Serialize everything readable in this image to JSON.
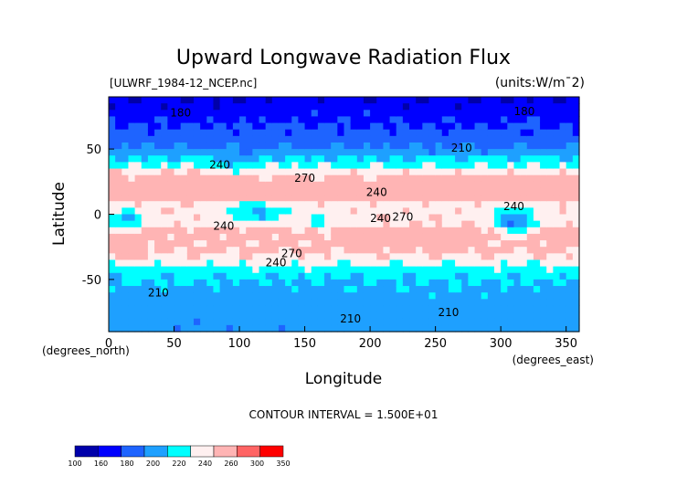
{
  "chart_data": {
    "type": "heatmap",
    "title": "Upward Longwave Radiation Flux",
    "file_label": "[ULWRF_1984-12_NCEP.nc]",
    "units_label": "(units:W/m^2)",
    "xlabel": "Longitude",
    "ylabel": "Latitude",
    "x_unit_note": "(degrees_east)",
    "y_unit_note": "(degrees_north)",
    "xlim": [
      0,
      360
    ],
    "ylim": [
      -90,
      90
    ],
    "x_ticks": [
      "0",
      "50",
      "100",
      "150",
      "200",
      "250",
      "300",
      "350"
    ],
    "x_tick_values": [
      0,
      50,
      100,
      150,
      200,
      250,
      300,
      350
    ],
    "y_ticks": [
      "50",
      "0",
      "-50"
    ],
    "y_tick_values": [
      50,
      0,
      -50
    ],
    "contour_interval_text": "CONTOUR INTERVAL = 1.500E+01",
    "contour_labels": [
      {
        "text": "180",
        "lon": 55,
        "lat": 75
      },
      {
        "text": "180",
        "lon": 318,
        "lat": 76
      },
      {
        "text": "210",
        "lon": 270,
        "lat": 48
      },
      {
        "text": "240",
        "lon": 85,
        "lat": 35
      },
      {
        "text": "270",
        "lon": 150,
        "lat": 25
      },
      {
        "text": "240",
        "lon": 205,
        "lat": 14
      },
      {
        "text": "240",
        "lon": 208,
        "lat": -6
      },
      {
        "text": "270",
        "lon": 225,
        "lat": -5
      },
      {
        "text": "240",
        "lon": 310,
        "lat": 3
      },
      {
        "text": "240",
        "lon": 88,
        "lat": -12
      },
      {
        "text": "270",
        "lon": 140,
        "lat": -33
      },
      {
        "text": "240",
        "lon": 128,
        "lat": -40
      },
      {
        "text": "210",
        "lon": 38,
        "lat": -63
      },
      {
        "text": "210",
        "lon": 185,
        "lat": -83
      },
      {
        "text": "210",
        "lon": 260,
        "lat": -78
      }
    ],
    "colorbar": {
      "tick_labels": [
        "100",
        "160",
        "180",
        "200",
        "220",
        "240",
        "260",
        "300",
        "350"
      ],
      "colors": [
        "#0000aa",
        "#0000ff",
        "#1e64ff",
        "#1ea0ff",
        "#00ffff",
        "#fff0f0",
        "#ffb4b4",
        "#ff6464",
        "#ff0000"
      ]
    },
    "levels": [
      100,
      160,
      180,
      200,
      220,
      240,
      260,
      300,
      350
    ],
    "field_description_grid_step_deg": 5
  }
}
